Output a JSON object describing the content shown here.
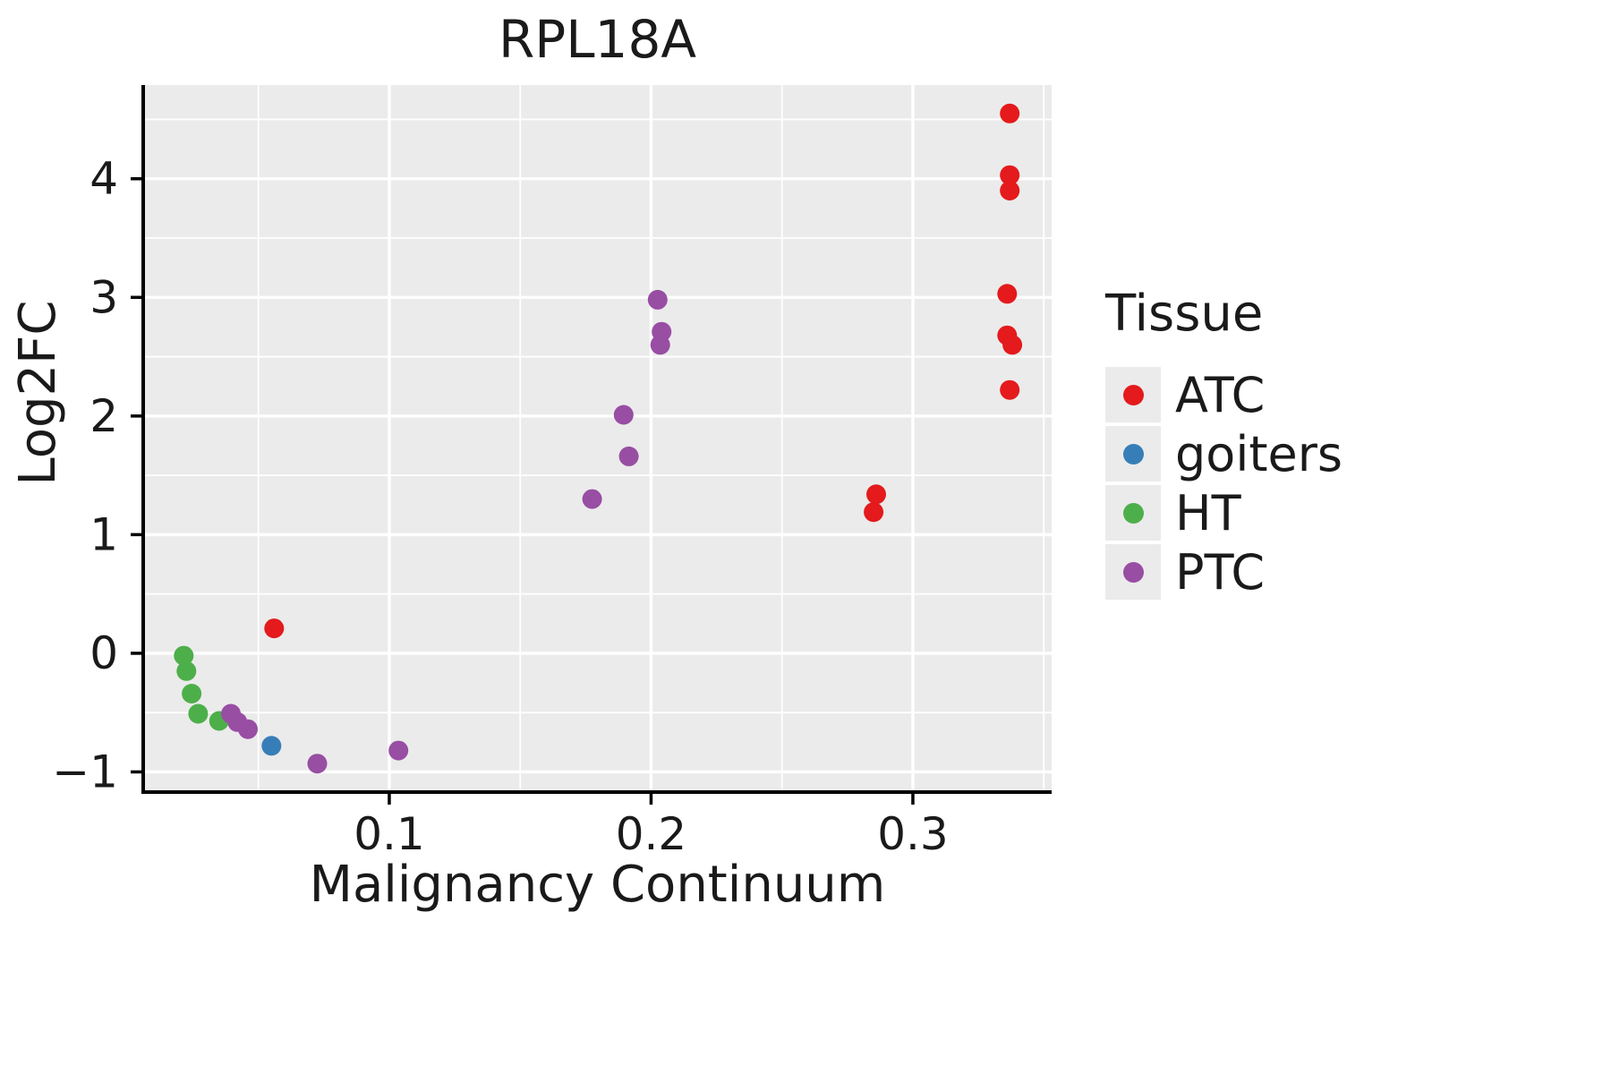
{
  "title": "RPL18A",
  "axes": {
    "xlabel": "Malignancy Continuum",
    "ylabel": "Log2FC"
  },
  "legend": {
    "title": "Tissue",
    "items": [
      {
        "label": "ATC",
        "color": "#E41A1C"
      },
      {
        "label": "goiters",
        "color": "#377EB8"
      },
      {
        "label": "HT",
        "color": "#4DAF4A"
      },
      {
        "label": "PTC",
        "color": "#984EA3"
      }
    ]
  },
  "chart_data": {
    "type": "scatter",
    "title": "RPL18A",
    "xlabel": "Malignancy Continuum",
    "ylabel": "Log2FC",
    "xlim": [
      0.006,
      0.353
    ],
    "ylim": [
      -1.17,
      4.79
    ],
    "x_ticks": [
      0.1,
      0.2,
      0.3
    ],
    "y_ticks": [
      -1,
      0,
      1,
      2,
      3,
      4
    ],
    "x_minor_ticks": [
      0.05,
      0.15,
      0.25,
      0.35
    ],
    "y_minor_ticks": [
      -0.5,
      0.5,
      1.5,
      2.5,
      3.5,
      4.5
    ],
    "grid": true,
    "panel_background": "#EBEBEB",
    "gridline_color": "#FFFFFF",
    "legend_position": "right",
    "marker_radius": 11,
    "series": [
      {
        "name": "ATC",
        "color": "#E41A1C",
        "points": [
          [
            0.056,
            0.21
          ],
          [
            0.285,
            1.19
          ],
          [
            0.286,
            1.34
          ],
          [
            0.337,
            2.22
          ],
          [
            0.338,
            2.6
          ],
          [
            0.336,
            2.68
          ],
          [
            0.336,
            3.03
          ],
          [
            0.337,
            3.9
          ],
          [
            0.337,
            4.03
          ],
          [
            0.337,
            4.55
          ]
        ]
      },
      {
        "name": "goiters",
        "color": "#377EB8",
        "points": [
          [
            0.055,
            -0.78
          ]
        ]
      },
      {
        "name": "HT",
        "color": "#4DAF4A",
        "points": [
          [
            0.0215,
            -0.02
          ],
          [
            0.0225,
            -0.15
          ],
          [
            0.0245,
            -0.34
          ],
          [
            0.027,
            -0.51
          ],
          [
            0.035,
            -0.57
          ]
        ]
      },
      {
        "name": "PTC",
        "color": "#984EA3",
        "points": [
          [
            0.0395,
            -0.51
          ],
          [
            0.042,
            -0.58
          ],
          [
            0.046,
            -0.64
          ],
          [
            0.0725,
            -0.93
          ],
          [
            0.1035,
            -0.82
          ],
          [
            0.1775,
            1.3
          ],
          [
            0.1895,
            2.01
          ],
          [
            0.1915,
            1.66
          ],
          [
            0.2025,
            2.98
          ],
          [
            0.204,
            2.71
          ],
          [
            0.2035,
            2.6
          ]
        ]
      }
    ]
  }
}
